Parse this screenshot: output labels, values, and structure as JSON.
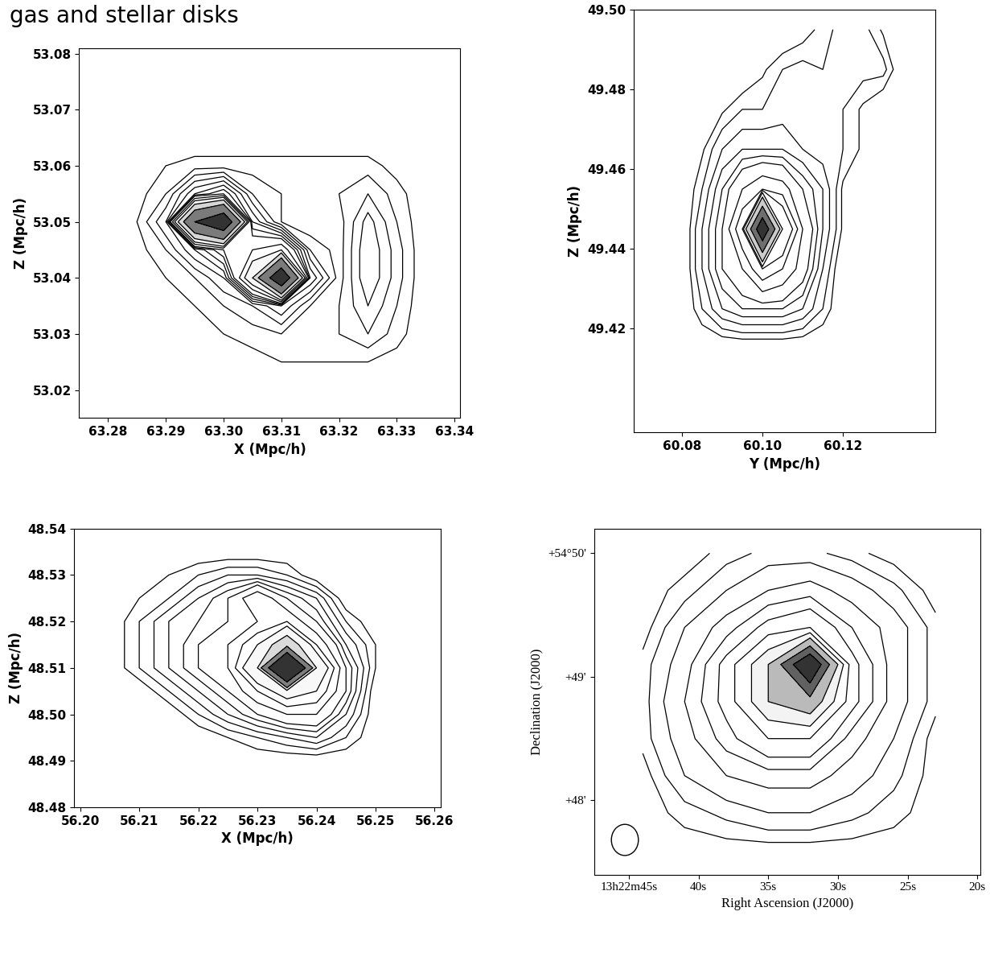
{
  "title": "gas and stellar disks",
  "chart_data": [
    {
      "type": "contour",
      "x_label": "X (Mpc/h)",
      "y_label": "Z (Mpc/h)",
      "color": "#000000",
      "xlim": [
        63.275,
        63.341
      ],
      "ylim": [
        53.015,
        53.081
      ],
      "xticks": [
        63.28,
        63.29,
        {
          "value": 63.3,
          "label": "63.30"
        },
        63.31,
        63.32,
        63.33,
        63.34
      ],
      "yticks": [
        53.02,
        53.03,
        53.04,
        53.05,
        53.06,
        53.07,
        53.08
      ],
      "levels": [
        1,
        2,
        3,
        4,
        5,
        6,
        7,
        8,
        10,
        12,
        15,
        20,
        30
      ],
      "grid": {
        "x": [
          63.285,
          63.29,
          63.295,
          63.3,
          63.305,
          63.31,
          63.315,
          63.32,
          63.325,
          63.33,
          63.335
        ],
        "y": [
          53.025,
          53.03,
          53.035,
          53.04,
          53.045,
          53.05,
          53.055,
          53.06,
          53.065
        ],
        "z": [
          [
            0,
            0,
            0,
            0,
            0.5,
            1,
            1,
            1,
            1,
            0.5,
            0
          ],
          [
            0,
            0,
            0.5,
            1,
            1.5,
            2,
            1.5,
            2,
            3,
            1.5,
            0
          ],
          [
            0,
            0.5,
            1,
            2,
            3,
            5,
            2,
            2,
            4,
            2,
            0
          ],
          [
            0,
            1,
            2,
            4,
            15,
            40,
            6,
            1.5,
            5,
            2.5,
            0
          ],
          [
            0.5,
            2,
            5,
            8,
            10,
            12,
            3,
            1.5,
            5,
            2.5,
            0
          ],
          [
            1,
            4,
            30,
            40,
            6,
            2,
            1,
            1.5,
            4.5,
            2,
            0
          ],
          [
            0.5,
            2,
            6,
            8,
            3,
            2,
            1.5,
            2,
            3,
            1.5,
            0
          ],
          [
            0,
            1,
            1.5,
            1.5,
            1.5,
            1.5,
            1.5,
            1.5,
            1.5,
            0.5,
            0
          ],
          [
            0,
            0,
            0,
            0,
            0,
            0,
            0,
            0,
            0,
            0,
            0
          ]
        ]
      }
    },
    {
      "type": "contour",
      "x_label": "Y (Mpc/h)",
      "y_label": "Z (Mpc/h)",
      "color": "#000000",
      "xlim": [
        60.068,
        60.143
      ],
      "ylim": [
        49.394,
        49.5
      ],
      "xticks": [
        60.08,
        {
          "value": 60.1,
          "label": "60.10"
        },
        60.12
      ],
      "yticks": [
        49.42,
        49.44,
        49.46,
        49.48,
        {
          "value": 49.5,
          "label": "49.50"
        }
      ],
      "levels": [
        0.6,
        1,
        1.5,
        2,
        2.5,
        3,
        4,
        5,
        6,
        8,
        12,
        20,
        30
      ],
      "grid": {
        "x": [
          60.08,
          60.085,
          60.09,
          60.095,
          60.1,
          60.105,
          60.11,
          60.115,
          60.12,
          60.125,
          60.13,
          60.135
        ],
        "y": [
          49.415,
          49.425,
          49.435,
          49.445,
          49.455,
          49.465,
          49.475,
          49.485,
          49.495
        ],
        "z": [
          [
            0,
            0,
            0,
            0,
            0,
            0,
            0,
            0,
            0,
            0,
            0,
            0
          ],
          [
            0,
            1,
            2,
            2.5,
            2.5,
            2.5,
            2,
            1,
            0,
            0,
            0,
            0
          ],
          [
            0,
            1.5,
            3,
            4,
            6,
            5,
            3.5,
            1.5,
            0,
            0,
            0,
            0
          ],
          [
            0,
            1.5,
            3,
            6,
            40,
            8,
            4,
            2,
            0.5,
            0,
            0,
            0
          ],
          [
            0,
            1,
            2.5,
            4,
            5,
            4.5,
            3,
            2,
            0.5,
            0,
            0,
            0
          ],
          [
            0,
            0.5,
            1.5,
            2,
            2,
            2,
            1.5,
            1.2,
            1,
            0.5,
            0,
            0
          ],
          [
            0,
            0,
            0.5,
            1,
            1,
            1.2,
            1.2,
            1.2,
            1,
            0.5,
            0,
            0
          ],
          [
            0,
            0,
            0,
            0,
            0.5,
            1,
            1.2,
            1,
            1.2,
            1.2,
            1.2,
            0
          ],
          [
            0,
            0,
            0,
            0,
            0,
            0,
            0.3,
            0.8,
            1.2,
            1.2,
            0.5,
            0
          ]
        ]
      }
    },
    {
      "type": "contour",
      "x_label": "X (Mpc/h)",
      "y_label": "Z (Mpc/h)",
      "color": "#000000",
      "xlim": [
        56.199,
        56.261
      ],
      "ylim": [
        48.48,
        48.54
      ],
      "xticks": [
        {
          "value": 56.2,
          "label": "56.20"
        },
        56.21,
        56.22,
        56.23,
        56.24,
        56.25,
        56.26
      ],
      "yticks": [
        48.48,
        48.49,
        {
          "value": 48.5,
          "label": "48.50"
        },
        48.51,
        48.52,
        48.53,
        48.54
      ],
      "levels": [
        0.5,
        1,
        1.5,
        2,
        2.5,
        3,
        4,
        5,
        6,
        8,
        12,
        20
      ],
      "grid": {
        "x": [
          56.205,
          56.21,
          56.215,
          56.22,
          56.225,
          56.23,
          56.235,
          56.24,
          56.245,
          56.25,
          56.255
        ],
        "y": [
          48.49,
          48.495,
          48.5,
          48.505,
          48.51,
          48.515,
          48.52,
          48.525,
          48.53,
          48.535
        ],
        "z": [
          [
            0,
            0,
            0,
            0,
            0,
            0,
            0,
            0,
            0,
            0,
            0
          ],
          [
            0,
            0,
            0,
            0,
            0.5,
            1,
            1.5,
            2,
            1,
            0,
            0
          ],
          [
            0,
            0,
            0,
            1,
            2,
            3,
            4,
            4,
            2,
            0,
            0
          ],
          [
            0,
            0,
            1,
            2,
            3,
            5,
            7,
            6,
            3,
            0,
            0
          ],
          [
            0,
            1,
            2,
            3,
            4,
            8,
            40,
            8,
            3,
            0.5,
            0
          ],
          [
            0,
            1,
            2,
            3,
            4,
            6,
            10,
            5,
            2,
            0.5,
            0
          ],
          [
            0,
            1,
            2,
            2.5,
            3,
            4,
            5,
            3,
            1,
            0,
            0
          ],
          [
            0,
            0.5,
            1,
            2,
            3,
            5,
            3,
            2,
            0,
            0,
            0
          ],
          [
            0,
            0,
            0.5,
            1,
            1.5,
            1.5,
            1,
            0,
            0,
            0,
            0
          ],
          [
            0,
            0,
            0,
            0,
            0,
            0,
            0,
            0,
            0,
            0,
            0
          ]
        ]
      }
    },
    {
      "type": "contour",
      "x_label": "Right Ascension (J2000)",
      "y_label": "Declination (J2000)",
      "color": "#000000",
      "xlim": [
        47.5,
        19.8
      ],
      "ylim": [
        47.4,
        50.2
      ],
      "xticks": [
        {
          "value": 45,
          "label": "13h22m45s"
        },
        {
          "value": 40,
          "label": "40s"
        },
        {
          "value": 35,
          "label": "35s"
        },
        {
          "value": 30,
          "label": "30s"
        },
        {
          "value": 25,
          "label": "25s"
        },
        {
          "value": 20,
          "label": "20s"
        }
      ],
      "yticks": [
        {
          "value": 48,
          "label": "+48'"
        },
        {
          "value": 49,
          "label": "+49'"
        },
        {
          "value": 50,
          "label": "+54°50'"
        }
      ],
      "levels": [
        0.3,
        0.8,
        1.5,
        2.5,
        3.5,
        4.5,
        6,
        8,
        10,
        13,
        16
      ],
      "grid": {
        "x": [
          23,
          26,
          29,
          32,
          35,
          38,
          41,
          44
        ],
        "y": [
          47.6,
          47.9,
          48.2,
          48.5,
          48.8,
          49.1,
          49.4,
          49.7,
          50.0
        ],
        "z": [
          [
            0,
            0,
            0,
            0,
            0,
            0,
            0,
            0
          ],
          [
            0,
            0.5,
            1,
            1.5,
            1.5,
            1,
            0.5,
            0
          ],
          [
            0,
            1,
            2,
            3,
            3,
            2.5,
            1.5,
            0
          ],
          [
            0,
            1.5,
            3,
            6,
            6,
            4,
            2,
            0.5
          ],
          [
            0.5,
            2,
            5,
            12,
            10,
            5,
            2.5,
            0.5
          ],
          [
            0.5,
            2,
            5,
            20,
            10,
            5,
            2,
            0.5
          ],
          [
            0.5,
            2,
            3.5,
            6,
            5,
            3,
            1.5,
            0
          ],
          [
            0,
            1,
            2,
            3,
            2.5,
            1.5,
            0.5,
            0
          ],
          [
            0,
            0,
            0.5,
            1,
            1,
            0.5,
            0,
            0
          ]
        ]
      }
    }
  ]
}
